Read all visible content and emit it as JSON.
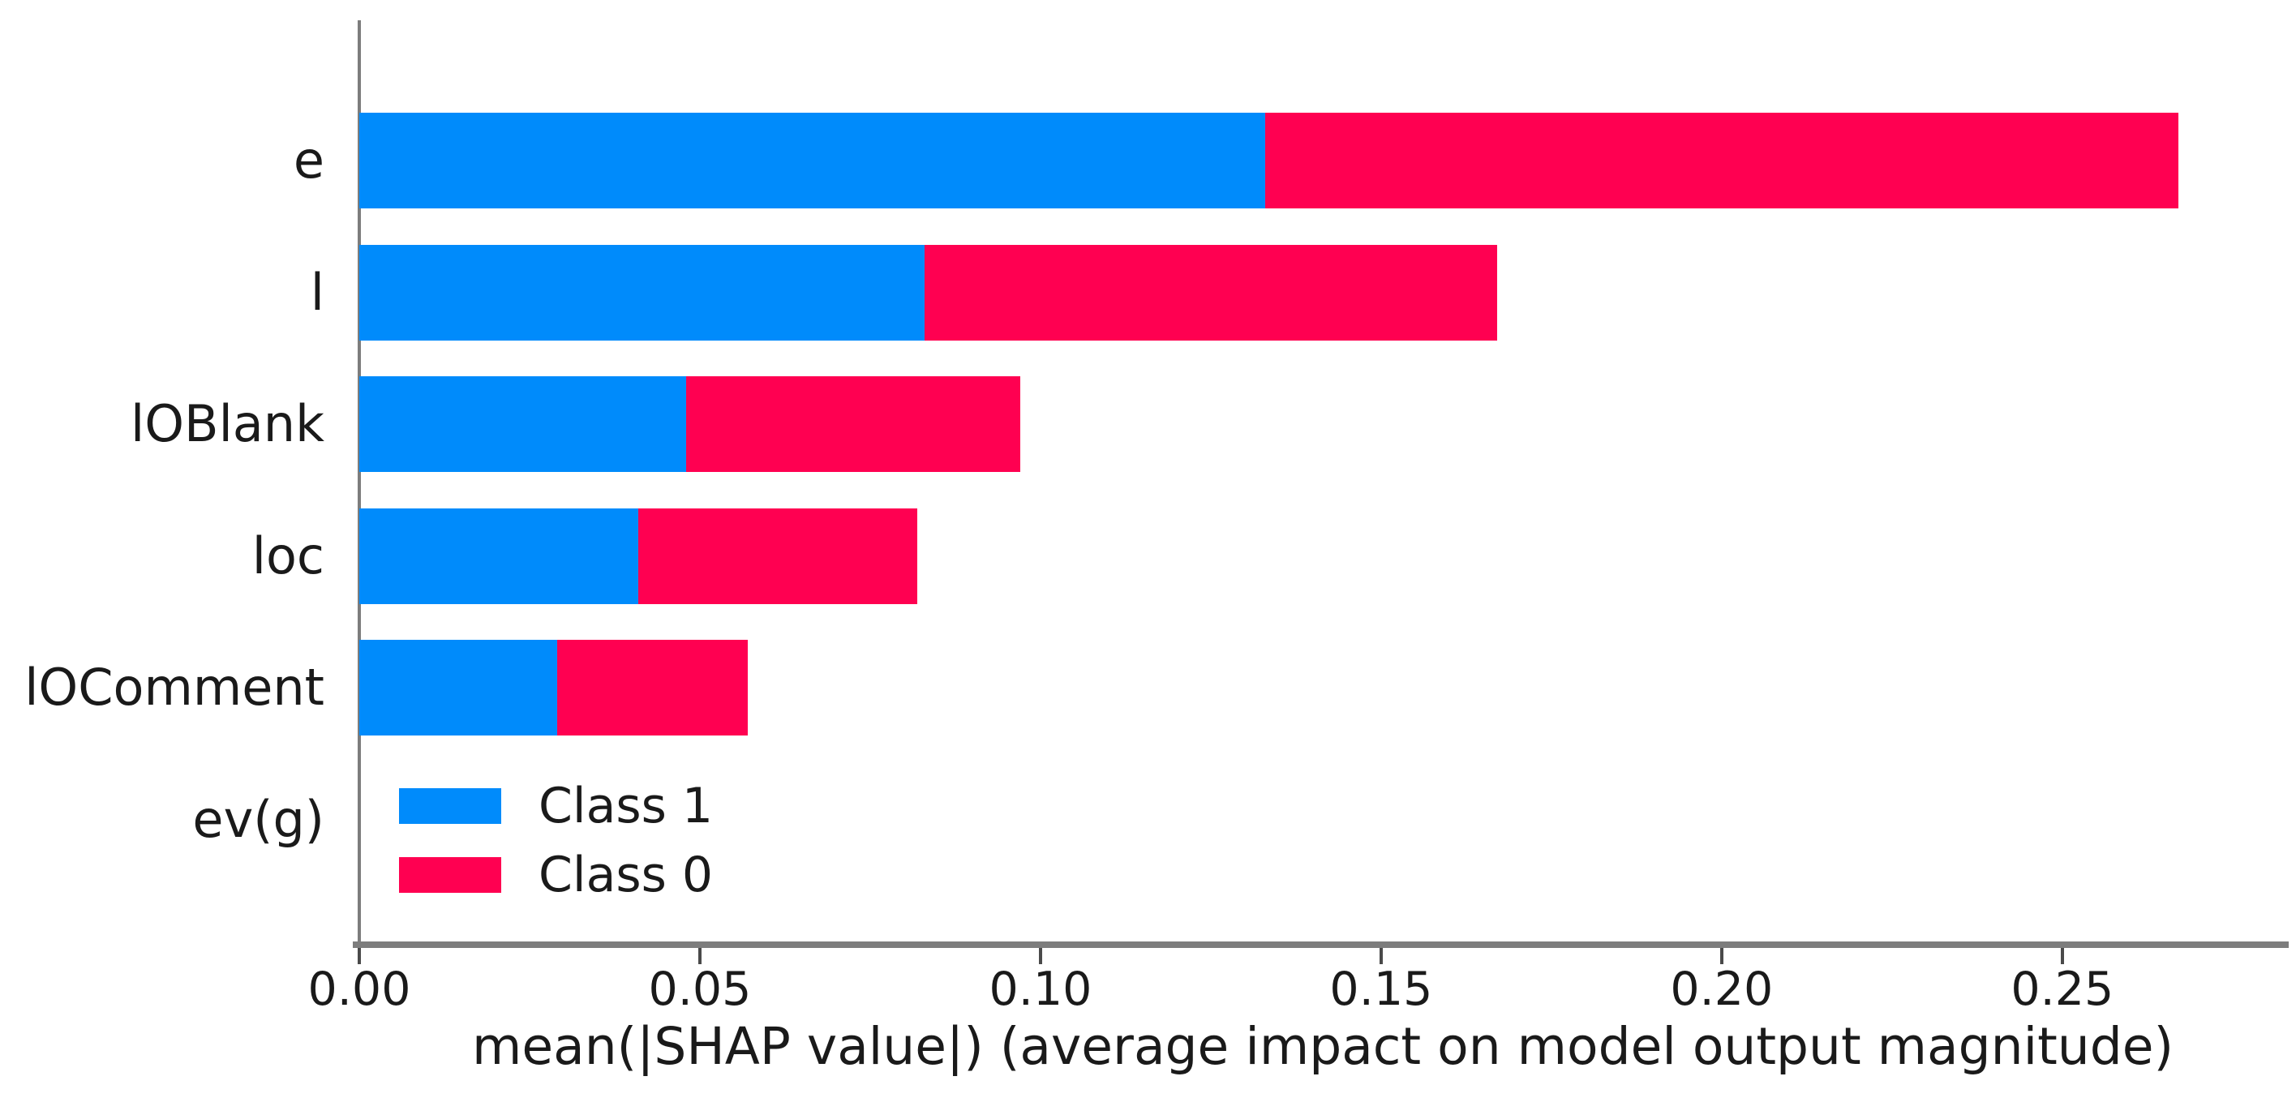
{
  "chart_data": {
    "type": "bar",
    "orientation": "horizontal",
    "stacked": true,
    "title": "",
    "categories": [
      "e",
      "l",
      "lOBlank",
      "loc",
      "lOComment",
      "ev(g)"
    ],
    "series": [
      {
        "name": "Class 1",
        "color": "#008bfb",
        "values": [
          0.133,
          0.083,
          0.048,
          0.041,
          0.029,
          0.0
        ]
      },
      {
        "name": "Class 0",
        "color": "#ff0051",
        "values": [
          0.134,
          0.084,
          0.049,
          0.041,
          0.028,
          0.0
        ]
      }
    ],
    "xlabel": "mean(|SHAP value|) (average impact on model output magnitude)",
    "ylabel": "",
    "x_ticks": [
      0.0,
      0.05,
      0.1,
      0.15,
      0.2,
      0.25
    ],
    "x_tick_labels": [
      "0.00",
      "0.05",
      "0.10",
      "0.15",
      "0.20",
      "0.25"
    ],
    "xlim": [
      0,
      0.283
    ],
    "grid": false,
    "legend_position": "lower-left-inside-plot",
    "background_color": "#ffffff",
    "axis_color": "#7d7d7d",
    "tick_color": "#4a4a4a",
    "text_color": "#1a1a1a"
  }
}
